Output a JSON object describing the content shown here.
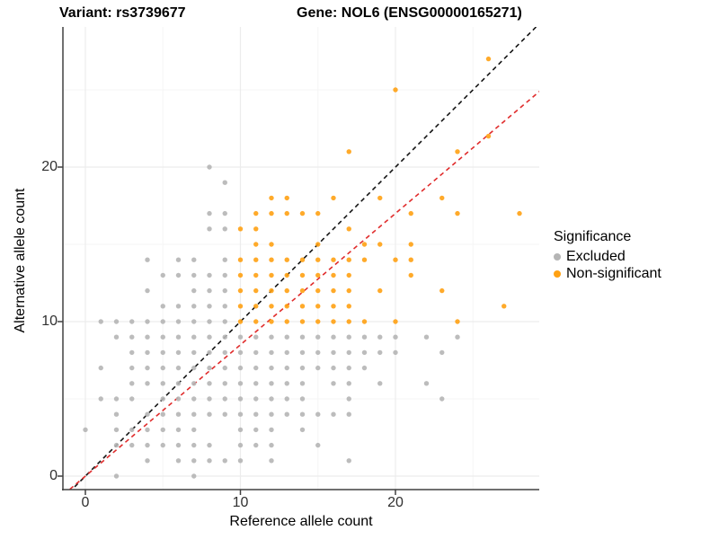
{
  "titles": {
    "left": "Variant: rs3739677",
    "right": "Gene: NOL6 (ENSG00000165271)"
  },
  "axes": {
    "x": {
      "label": "Reference allele count",
      "ticks": [
        0,
        10,
        20
      ],
      "minor": [
        5,
        15,
        25
      ],
      "range": [
        -1.45,
        29.3
      ]
    },
    "y": {
      "label": "Alternative allele count",
      "ticks": [
        0,
        10,
        20
      ],
      "minor": [
        5,
        15,
        25
      ],
      "range": [
        -0.9,
        29.1
      ]
    }
  },
  "legend": {
    "title": "Significance",
    "items": [
      {
        "label": "Excluded",
        "color": "#b5b5b5"
      },
      {
        "label": "Non-significant",
        "color": "#FFA113"
      }
    ]
  },
  "colors": {
    "excluded": "#b5b5b5",
    "non_significant": "#FFA113",
    "identity_line": "#141414",
    "ratio_line": "#E02C2C",
    "axis": "#404040",
    "grid_major": "#ececec",
    "grid_minor": "#f5f5f5",
    "tick_text": "#303030"
  },
  "chart_data": {
    "type": "scatter",
    "title_left": "Variant: rs3739677",
    "title_right": "Gene: NOL6 (ENSG00000165271)",
    "xlabel": "Reference allele count",
    "ylabel": "Alternative allele count",
    "xlim": [
      -1.45,
      29.3
    ],
    "ylim": [
      -0.9,
      29.1
    ],
    "grid": true,
    "legend_position": "right",
    "legend_title": "Significance",
    "series": [
      {
        "name": "Excluded",
        "color": "#b5b5b5",
        "points": [
          [
            8,
            20
          ],
          [
            9,
            19
          ],
          [
            8,
            17
          ],
          [
            9,
            17
          ],
          [
            8,
            16
          ],
          [
            9,
            16
          ],
          [
            4,
            14
          ],
          [
            6,
            14
          ],
          [
            7,
            14
          ],
          [
            9,
            14
          ],
          [
            5,
            13
          ],
          [
            6,
            13
          ],
          [
            7,
            13
          ],
          [
            8,
            13
          ],
          [
            9,
            13
          ],
          [
            4,
            12
          ],
          [
            7,
            12
          ],
          [
            8,
            12
          ],
          [
            9,
            12
          ],
          [
            5,
            11
          ],
          [
            6,
            11
          ],
          [
            7,
            11
          ],
          [
            8,
            11
          ],
          [
            9,
            11
          ],
          [
            1,
            10
          ],
          [
            2,
            10
          ],
          [
            3,
            10
          ],
          [
            4,
            10
          ],
          [
            5,
            10
          ],
          [
            6,
            10
          ],
          [
            7,
            10
          ],
          [
            8,
            10
          ],
          [
            9,
            10
          ],
          [
            2,
            9
          ],
          [
            3,
            9
          ],
          [
            4,
            9
          ],
          [
            5,
            9
          ],
          [
            6,
            9
          ],
          [
            7,
            9
          ],
          [
            8,
            9
          ],
          [
            9,
            9
          ],
          [
            10,
            9
          ],
          [
            11,
            9
          ],
          [
            12,
            9
          ],
          [
            13,
            9
          ],
          [
            14,
            9
          ],
          [
            15,
            9
          ],
          [
            16,
            9
          ],
          [
            17,
            9
          ],
          [
            18,
            9
          ],
          [
            19,
            9
          ],
          [
            20,
            9
          ],
          [
            22,
            9
          ],
          [
            24,
            9
          ],
          [
            3,
            8
          ],
          [
            4,
            8
          ],
          [
            5,
            8
          ],
          [
            6,
            8
          ],
          [
            7,
            8
          ],
          [
            8,
            8
          ],
          [
            9,
            8
          ],
          [
            10,
            8
          ],
          [
            11,
            8
          ],
          [
            12,
            8
          ],
          [
            13,
            8
          ],
          [
            14,
            8
          ],
          [
            15,
            8
          ],
          [
            16,
            8
          ],
          [
            17,
            8
          ],
          [
            18,
            8
          ],
          [
            19,
            8
          ],
          [
            20,
            8
          ],
          [
            23,
            8
          ],
          [
            1,
            7
          ],
          [
            3,
            7
          ],
          [
            4,
            7
          ],
          [
            5,
            7
          ],
          [
            6,
            7
          ],
          [
            7,
            7
          ],
          [
            8,
            7
          ],
          [
            9,
            7
          ],
          [
            10,
            7
          ],
          [
            11,
            7
          ],
          [
            12,
            7
          ],
          [
            13,
            7
          ],
          [
            14,
            7
          ],
          [
            15,
            7
          ],
          [
            16,
            7
          ],
          [
            17,
            7
          ],
          [
            18,
            7
          ],
          [
            3,
            6
          ],
          [
            4,
            6
          ],
          [
            5,
            6
          ],
          [
            6,
            6
          ],
          [
            7,
            6
          ],
          [
            8,
            6
          ],
          [
            9,
            6
          ],
          [
            10,
            6
          ],
          [
            11,
            6
          ],
          [
            12,
            6
          ],
          [
            13,
            6
          ],
          [
            14,
            6
          ],
          [
            16,
            6
          ],
          [
            17,
            6
          ],
          [
            19,
            6
          ],
          [
            22,
            6
          ],
          [
            1,
            5
          ],
          [
            2,
            5
          ],
          [
            3,
            5
          ],
          [
            5,
            5
          ],
          [
            6,
            5
          ],
          [
            7,
            5
          ],
          [
            8,
            5
          ],
          [
            9,
            5
          ],
          [
            10,
            5
          ],
          [
            11,
            5
          ],
          [
            12,
            5
          ],
          [
            13,
            5
          ],
          [
            14,
            5
          ],
          [
            17,
            5
          ],
          [
            23,
            5
          ],
          [
            2,
            4
          ],
          [
            4,
            4
          ],
          [
            5,
            4
          ],
          [
            6,
            4
          ],
          [
            7,
            4
          ],
          [
            8,
            4
          ],
          [
            9,
            4
          ],
          [
            10,
            4
          ],
          [
            11,
            4
          ],
          [
            12,
            4
          ],
          [
            13,
            4
          ],
          [
            14,
            4
          ],
          [
            15,
            4
          ],
          [
            16,
            4
          ],
          [
            17,
            4
          ],
          [
            0,
            3
          ],
          [
            2,
            3
          ],
          [
            3,
            3
          ],
          [
            4,
            3
          ],
          [
            5,
            3
          ],
          [
            6,
            3
          ],
          [
            7,
            3
          ],
          [
            10,
            3
          ],
          [
            11,
            3
          ],
          [
            12,
            3
          ],
          [
            14,
            3
          ],
          [
            2,
            2
          ],
          [
            3,
            2
          ],
          [
            4,
            2
          ],
          [
            5,
            2
          ],
          [
            6,
            2
          ],
          [
            7,
            2
          ],
          [
            8,
            2
          ],
          [
            10,
            2
          ],
          [
            11,
            2
          ],
          [
            12,
            2
          ],
          [
            15,
            2
          ],
          [
            4,
            1
          ],
          [
            6,
            1
          ],
          [
            7,
            1
          ],
          [
            8,
            1
          ],
          [
            9,
            1
          ],
          [
            10,
            1
          ],
          [
            12,
            1
          ],
          [
            17,
            1
          ],
          [
            2,
            0
          ],
          [
            7,
            0
          ]
        ]
      },
      {
        "name": "Non-significant",
        "color": "#FFA113",
        "points": [
          [
            26,
            27
          ],
          [
            20,
            25
          ],
          [
            26,
            22
          ],
          [
            17,
            21
          ],
          [
            24,
            21
          ],
          [
            12,
            18
          ],
          [
            13,
            18
          ],
          [
            16,
            18
          ],
          [
            19,
            18
          ],
          [
            23,
            18
          ],
          [
            11,
            17
          ],
          [
            12,
            17
          ],
          [
            13,
            17
          ],
          [
            14,
            17
          ],
          [
            15,
            17
          ],
          [
            21,
            17
          ],
          [
            24,
            17
          ],
          [
            28,
            17
          ],
          [
            10,
            16
          ],
          [
            11,
            16
          ],
          [
            17,
            16
          ],
          [
            11,
            15
          ],
          [
            12,
            15
          ],
          [
            15,
            15
          ],
          [
            18,
            15
          ],
          [
            19,
            15
          ],
          [
            21,
            15
          ],
          [
            10,
            14
          ],
          [
            11,
            14
          ],
          [
            12,
            14
          ],
          [
            13,
            14
          ],
          [
            14,
            14
          ],
          [
            15,
            14
          ],
          [
            16,
            14
          ],
          [
            17,
            14
          ],
          [
            18,
            14
          ],
          [
            20,
            14
          ],
          [
            21,
            14
          ],
          [
            10,
            13
          ],
          [
            11,
            13
          ],
          [
            12,
            13
          ],
          [
            13,
            13
          ],
          [
            14,
            13
          ],
          [
            15,
            13
          ],
          [
            16,
            13
          ],
          [
            17,
            13
          ],
          [
            21,
            13
          ],
          [
            10,
            12
          ],
          [
            11,
            12
          ],
          [
            12,
            12
          ],
          [
            13,
            12
          ],
          [
            14,
            12
          ],
          [
            15,
            12
          ],
          [
            16,
            12
          ],
          [
            17,
            12
          ],
          [
            19,
            12
          ],
          [
            23,
            12
          ],
          [
            10,
            11
          ],
          [
            11,
            11
          ],
          [
            12,
            11
          ],
          [
            13,
            11
          ],
          [
            14,
            11
          ],
          [
            15,
            11
          ],
          [
            16,
            11
          ],
          [
            17,
            11
          ],
          [
            27,
            11
          ],
          [
            10,
            10
          ],
          [
            11,
            10
          ],
          [
            12,
            10
          ],
          [
            13,
            10
          ],
          [
            14,
            10
          ],
          [
            15,
            10
          ],
          [
            16,
            10
          ],
          [
            17,
            10
          ],
          [
            18,
            10
          ],
          [
            20,
            10
          ],
          [
            24,
            10
          ]
        ]
      }
    ],
    "lines": [
      {
        "name": "identity",
        "style": "dashed",
        "color": "#141414",
        "slope": 1,
        "intercept": 0
      },
      {
        "name": "expected-ratio",
        "style": "dashed",
        "color": "#E02C2C",
        "slope": 0.85,
        "intercept": 0
      }
    ]
  }
}
